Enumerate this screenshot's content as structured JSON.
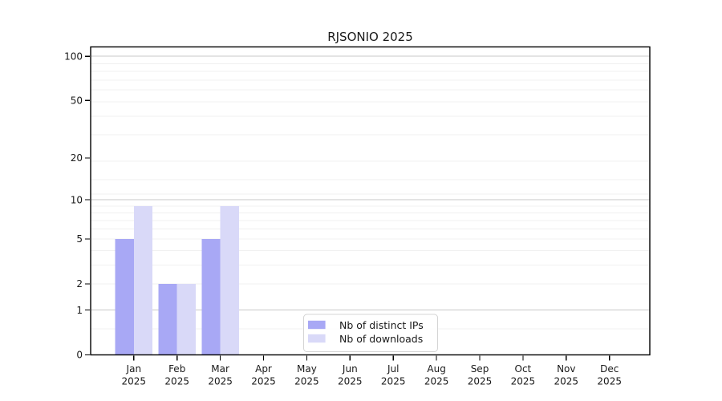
{
  "figure": {
    "background": "#ffffff"
  },
  "chart_data": {
    "type": "bar",
    "title": "RJSONIO 2025",
    "categories": [
      "Jan",
      "Feb",
      "Mar",
      "Apr",
      "May",
      "Jun",
      "Jul",
      "Aug",
      "Sep",
      "Oct",
      "Nov",
      "Dec"
    ],
    "x_tick_year": "2025",
    "series": [
      {
        "name": "Nb of distinct IPs",
        "key": "distinct-ips",
        "color": "#a8a8f5",
        "values": [
          5,
          2,
          5,
          0,
          0,
          0,
          0,
          0,
          0,
          0,
          0,
          0
        ]
      },
      {
        "name": "Nb of downloads",
        "key": "downloads",
        "color": "#d9d9f8",
        "values": [
          9,
          2,
          9,
          0,
          0,
          0,
          0,
          0,
          0,
          0,
          0,
          0
        ]
      }
    ],
    "yscale": "log1p",
    "ylim": [
      0,
      100
    ],
    "yticks": [
      0,
      1,
      2,
      5,
      10,
      20,
      50,
      100
    ],
    "grid": {
      "major_ticks": [
        1,
        10,
        100
      ],
      "minor_u": [
        1.5,
        3,
        4,
        5,
        6,
        7,
        8,
        9,
        10,
        12,
        15,
        20,
        30,
        40,
        50,
        60,
        70,
        80,
        90
      ],
      "major_color": "#c8c8c8",
      "minor_color": "#f0f0f0"
    },
    "legend": {
      "position": "lower center inside"
    },
    "axis_color": "#000000",
    "text_color": "#1a1a1a"
  }
}
